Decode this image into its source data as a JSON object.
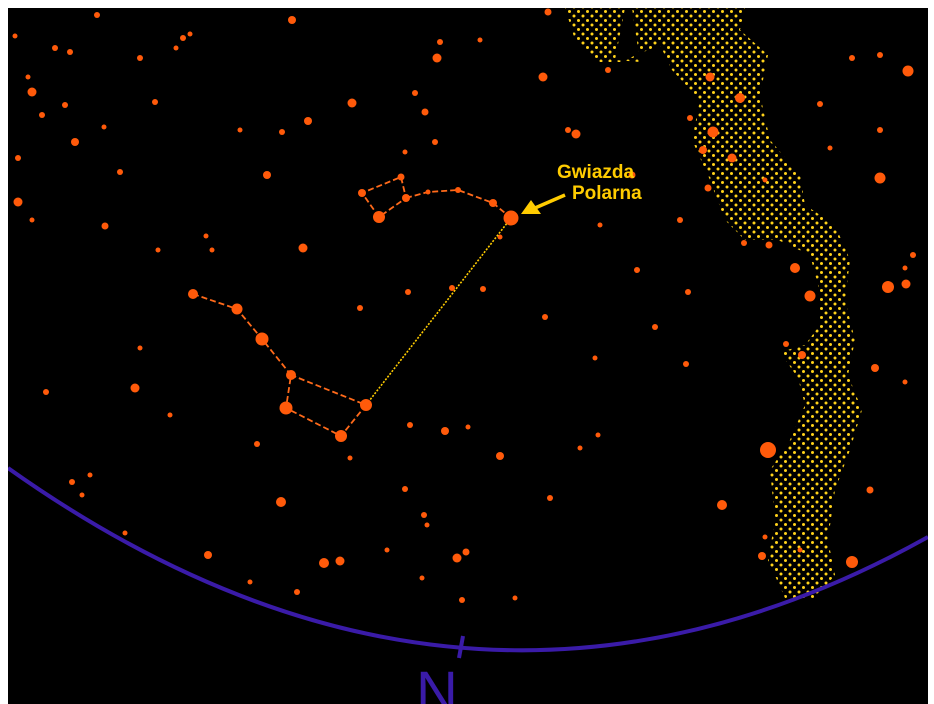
{
  "labels": {
    "polaris_line1": "Gwiazda",
    "polaris_line2": "Polarna",
    "direction": "N"
  },
  "colors": {
    "background": "#000000",
    "frame": "#ffffff",
    "star": "#ff5a0a",
    "constellation_line": "#ff6a1a",
    "pointer_line": "#ffcc00",
    "milky_way": "#ffd21a",
    "label": "#ffcc00",
    "horizon": "#3a1ba8"
  },
  "icons": {
    "pointer": "arrow-icon"
  }
}
